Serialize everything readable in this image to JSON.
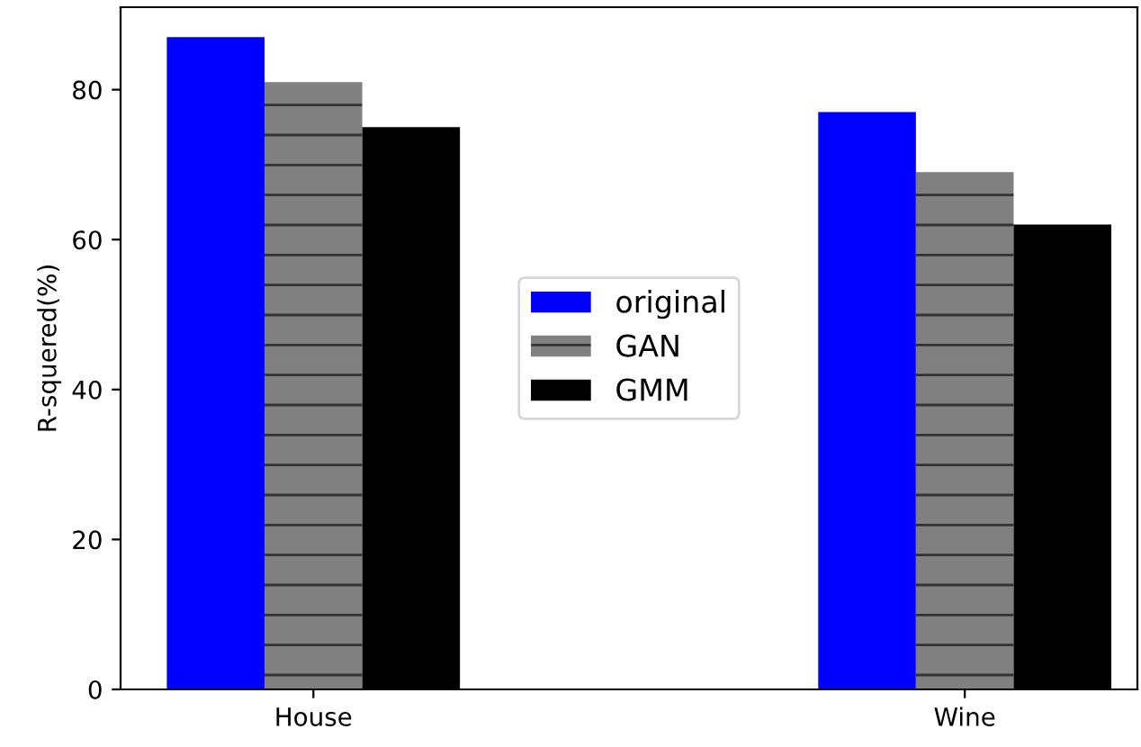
{
  "chart_data": {
    "type": "bar",
    "ylabel": "R-squered(%)",
    "categories": [
      "House",
      "Wine"
    ],
    "series": [
      {
        "name": "original",
        "color": "#0000ff",
        "values": [
          87,
          77
        ]
      },
      {
        "name": "GAN",
        "color": "#808080",
        "values": [
          81,
          69
        ]
      },
      {
        "name": "GMM",
        "color": "#000000",
        "values": [
          75,
          62
        ]
      }
    ],
    "ylim": [
      0,
      91
    ],
    "yticks": [
      0,
      20,
      40,
      60,
      80
    ],
    "grid": false,
    "legend": "center"
  }
}
